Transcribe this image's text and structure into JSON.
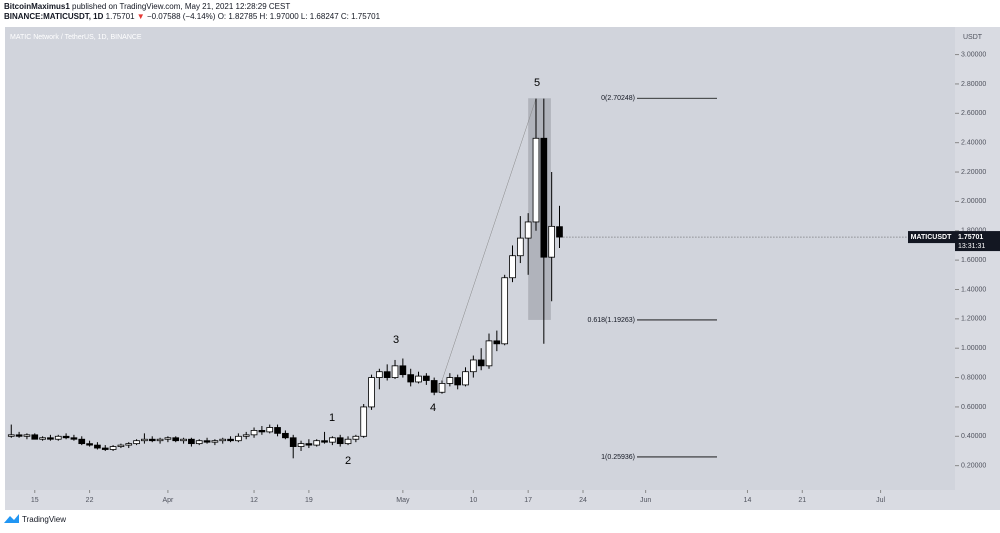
{
  "chart_data": {
    "type": "candlestick",
    "header": {
      "publisher": "BitcoinMaximus1",
      "published": "published on TradingView.com, May 21, 2021 12:28:29 CEST",
      "symbol": "BINANCE:MATICUSDT, 1D",
      "quote": "1.75701",
      "change_arrow": "▼",
      "change": "−0.07588 (−4.14%)",
      "ohlc": "O: 1.82785 H: 1.97000 L: 1.68247 C: 1.75701"
    },
    "title": "MATIC Network / TetherUS, 1D, BINANCE",
    "y_unit": "USDT",
    "x": [
      71,
      72,
      73,
      74,
      75,
      76,
      77,
      78,
      79,
      80,
      81,
      82,
      83,
      84,
      85,
      86,
      87,
      88,
      89,
      90,
      91,
      92,
      93,
      94,
      95,
      96,
      97,
      98,
      99,
      100,
      101,
      102,
      103,
      104,
      105,
      106,
      107,
      108,
      109,
      110,
      111,
      112,
      113,
      114,
      115,
      116,
      117,
      118,
      119,
      120,
      121,
      122,
      123,
      124,
      125,
      126,
      127,
      128,
      129,
      130,
      131,
      132,
      133,
      134,
      135,
      136,
      137,
      138,
      139,
      140,
      141
    ],
    "open": [
      0.4,
      0.41,
      0.4,
      0.41,
      0.38,
      0.39,
      0.38,
      0.4,
      0.39,
      0.38,
      0.35,
      0.34,
      0.32,
      0.31,
      0.33,
      0.34,
      0.35,
      0.37,
      0.38,
      0.37,
      0.38,
      0.39,
      0.37,
      0.38,
      0.35,
      0.37,
      0.36,
      0.37,
      0.38,
      0.37,
      0.4,
      0.41,
      0.44,
      0.43,
      0.46,
      0.42,
      0.39,
      0.33,
      0.35,
      0.34,
      0.37,
      0.36,
      0.39,
      0.35,
      0.38,
      0.4,
      0.6,
      0.8,
      0.84,
      0.8,
      0.88,
      0.82,
      0.77,
      0.81,
      0.78,
      0.7,
      0.76,
      0.8,
      0.75,
      0.84,
      0.92,
      0.88,
      1.05,
      1.03,
      1.48,
      1.63,
      1.75,
      1.86,
      2.43,
      1.62,
      1.82785
    ],
    "high": [
      0.48,
      0.43,
      0.42,
      0.42,
      0.4,
      0.41,
      0.41,
      0.42,
      0.41,
      0.4,
      0.37,
      0.36,
      0.34,
      0.34,
      0.35,
      0.36,
      0.38,
      0.42,
      0.4,
      0.39,
      0.4,
      0.4,
      0.39,
      0.39,
      0.38,
      0.39,
      0.38,
      0.39,
      0.4,
      0.42,
      0.43,
      0.46,
      0.47,
      0.48,
      0.48,
      0.44,
      0.41,
      0.37,
      0.38,
      0.38,
      0.43,
      0.4,
      0.41,
      0.4,
      0.41,
      0.62,
      0.82,
      0.86,
      0.89,
      0.92,
      0.93,
      0.86,
      0.84,
      0.83,
      0.8,
      0.78,
      0.83,
      0.82,
      0.87,
      0.95,
      1.0,
      1.1,
      1.12,
      1.5,
      1.7,
      1.9,
      1.92,
      2.7,
      2.7,
      2.2,
      1.97
    ],
    "low": [
      0.39,
      0.39,
      0.38,
      0.38,
      0.37,
      0.37,
      0.37,
      0.38,
      0.37,
      0.34,
      0.33,
      0.31,
      0.3,
      0.3,
      0.32,
      0.32,
      0.34,
      0.35,
      0.36,
      0.35,
      0.36,
      0.36,
      0.35,
      0.33,
      0.34,
      0.35,
      0.34,
      0.35,
      0.36,
      0.36,
      0.38,
      0.39,
      0.41,
      0.42,
      0.4,
      0.38,
      0.25,
      0.3,
      0.32,
      0.33,
      0.35,
      0.34,
      0.33,
      0.34,
      0.36,
      0.39,
      0.58,
      0.72,
      0.78,
      0.79,
      0.8,
      0.74,
      0.76,
      0.75,
      0.68,
      0.69,
      0.74,
      0.72,
      0.74,
      0.8,
      0.85,
      0.86,
      0.98,
      1.02,
      1.45,
      1.58,
      1.5,
      1.8,
      1.03,
      1.32,
      1.68247
    ],
    "close": [
      0.41,
      0.4,
      0.41,
      0.38,
      0.39,
      0.38,
      0.4,
      0.39,
      0.38,
      0.35,
      0.34,
      0.32,
      0.31,
      0.33,
      0.34,
      0.35,
      0.37,
      0.38,
      0.37,
      0.38,
      0.39,
      0.37,
      0.38,
      0.35,
      0.37,
      0.36,
      0.37,
      0.38,
      0.37,
      0.4,
      0.41,
      0.44,
      0.43,
      0.46,
      0.42,
      0.39,
      0.33,
      0.35,
      0.34,
      0.37,
      0.36,
      0.39,
      0.35,
      0.38,
      0.4,
      0.6,
      0.8,
      0.84,
      0.8,
      0.88,
      0.82,
      0.77,
      0.81,
      0.78,
      0.7,
      0.76,
      0.8,
      0.75,
      0.84,
      0.92,
      0.88,
      1.05,
      1.03,
      1.48,
      1.63,
      1.75,
      1.86,
      2.43,
      1.62,
      1.83,
      1.75701
    ],
    "xlim": [
      70.2,
      191.5
    ],
    "xticks": [
      {
        "value": 74,
        "label": "15"
      },
      {
        "value": 81,
        "label": "22"
      },
      {
        "value": 91,
        "label": "Apr"
      },
      {
        "value": 102,
        "label": "12"
      },
      {
        "value": 109,
        "label": "19"
      },
      {
        "value": 121,
        "label": "May"
      },
      {
        "value": 130,
        "label": "10"
      },
      {
        "value": 137,
        "label": "17"
      },
      {
        "value": 144,
        "label": "24"
      },
      {
        "value": 152,
        "label": "Jun"
      },
      {
        "value": 165,
        "label": "14"
      },
      {
        "value": 172,
        "label": "21"
      },
      {
        "value": 182,
        "label": "Jul"
      }
    ],
    "ylim": [
      0.0342,
      3.1879
    ],
    "yticks": [
      {
        "value": 0.2,
        "label": "0.20000"
      },
      {
        "value": 0.4,
        "label": "0.40000"
      },
      {
        "value": 0.6,
        "label": "0.60000"
      },
      {
        "value": 0.8,
        "label": "0.80000"
      },
      {
        "value": 1.0,
        "label": "1.00000"
      },
      {
        "value": 1.2,
        "label": "1.20000"
      },
      {
        "value": 1.4,
        "label": "1.40000"
      },
      {
        "value": 1.6,
        "label": "1.60000"
      },
      {
        "value": 1.8,
        "label": "1.80000"
      },
      {
        "value": 2.0,
        "label": "2.00000"
      },
      {
        "value": 2.2,
        "label": "2.20000"
      },
      {
        "value": 2.4,
        "label": "2.40000"
      },
      {
        "value": 2.6,
        "label": "2.60000"
      },
      {
        "value": 2.8,
        "label": "2.80000"
      },
      {
        "value": 3.0,
        "label": "3.00000"
      }
    ],
    "grid": false,
    "up_color": "#ffffff",
    "down_color": "#000000",
    "fib_levels": [
      {
        "label": "0(2.70248)",
        "value": 2.70248
      },
      {
        "label": "0.618(1.19263)",
        "value": 1.19263
      },
      {
        "label": "1(0.25936)",
        "value": 0.25936
      }
    ],
    "wave_labels": [
      "1",
      "2",
      "3",
      "4",
      "5"
    ],
    "last_price": {
      "symbol": "MATICUSDT",
      "value": 1.75701,
      "countdown": "13:31:31"
    },
    "footer": "TradingView"
  }
}
